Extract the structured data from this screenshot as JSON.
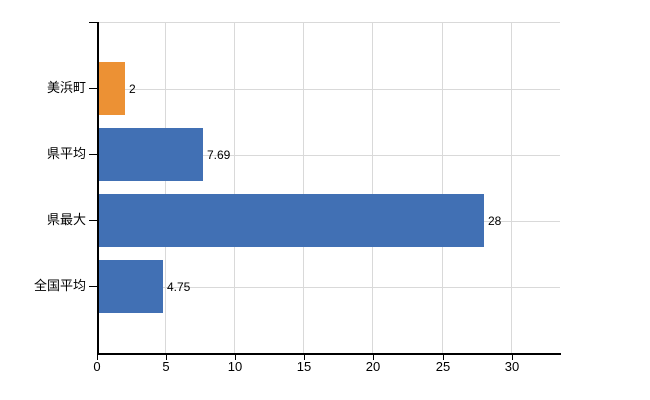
{
  "chart_data": {
    "type": "bar",
    "orientation": "horizontal",
    "title": "",
    "xlabel": "",
    "ylabel": "",
    "categories": [
      "美浜町",
      "県平均",
      "県最大",
      "全国平均"
    ],
    "values": [
      2,
      7.69,
      28,
      4.75
    ],
    "value_labels": [
      "2",
      "7.69",
      "28",
      "4.75"
    ],
    "bar_colors": [
      "#ec9134",
      "#4170b4",
      "#4170b4",
      "#4170b4"
    ],
    "x_ticks": [
      0,
      5,
      10,
      15,
      20,
      25,
      30
    ],
    "x_tick_labels": [
      "0",
      "5",
      "10",
      "15",
      "20",
      "25",
      "30"
    ],
    "xlim": [
      0,
      33.5
    ],
    "grid": true,
    "legend": "none",
    "colors": {
      "grid": "#d9d9d9",
      "axis": "#000000",
      "text": "#000000",
      "background": "#ffffff"
    }
  }
}
